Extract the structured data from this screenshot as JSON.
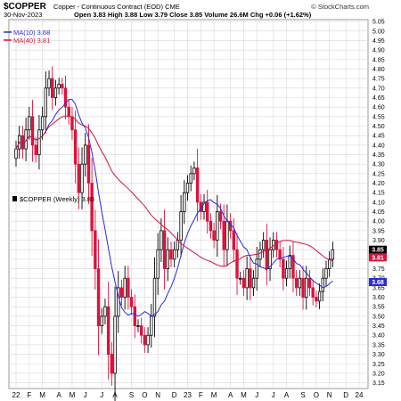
{
  "header": {
    "symbol": "$COPPER",
    "description": "Copper - Continuous Contract (EOD)",
    "exchange": "CME",
    "date": "30-Nov-2023",
    "ohlc": "Open 3.83  High 3.88  Low 3.79  Close 3.85  Volume 26.6M  Chg +0.06 (+1.62%)",
    "watermark": "© StockCharts.com"
  },
  "legend": {
    "ma10": "MA(10) 3.68",
    "ma40": "MA(40) 3.81",
    "series": "$COPPER (Weekly) 3.85"
  },
  "colors": {
    "up": "#000000",
    "down": "#e0103a",
    "ma10": "#2a2ad8",
    "ma40": "#d4133a",
    "grid": "#d9d9d9"
  },
  "chart_data": {
    "type": "candlestick",
    "interval": "weekly",
    "grid": true,
    "ylim": [
      3.12,
      5.06
    ],
    "yticks": [
      "5.05",
      "5.00",
      "4.95",
      "4.90",
      "4.85",
      "4.80",
      "4.75",
      "4.70",
      "4.65",
      "4.60",
      "4.55",
      "4.50",
      "4.45",
      "4.40",
      "4.35",
      "4.30",
      "4.25",
      "4.20",
      "4.15",
      "4.10",
      "4.05",
      "4.00",
      "3.95",
      "3.90",
      "3.85",
      "3.80",
      "3.75",
      "3.70",
      "3.65",
      "3.60",
      "3.55",
      "3.50",
      "3.45",
      "3.40",
      "3.35",
      "3.30",
      "3.25",
      "3.20",
      "3.15"
    ],
    "xticks": [
      {
        "label": "22",
        "week": 0
      },
      {
        "label": "F",
        "week": 4
      },
      {
        "label": "M",
        "week": 8
      },
      {
        "label": "A",
        "week": 13
      },
      {
        "label": "M",
        "week": 17
      },
      {
        "label": "J",
        "week": 21
      },
      {
        "label": "J",
        "week": 26
      },
      {
        "label": "A",
        "week": 30
      },
      {
        "label": "S",
        "week": 35
      },
      {
        "label": "O",
        "week": 39
      },
      {
        "label": "N",
        "week": 43
      },
      {
        "label": "D",
        "week": 48
      },
      {
        "label": "23",
        "week": 52
      },
      {
        "label": "F",
        "week": 56
      },
      {
        "label": "M",
        "week": 60
      },
      {
        "label": "A",
        "week": 65
      },
      {
        "label": "M",
        "week": 69
      },
      {
        "label": "J",
        "week": 73
      },
      {
        "label": "J",
        "week": 78
      },
      {
        "label": "A",
        "week": 82
      },
      {
        "label": "S",
        "week": 87
      },
      {
        "label": "O",
        "week": 91
      },
      {
        "label": "N",
        "week": 95
      },
      {
        "label": "D",
        "week": 100
      },
      {
        "label": "24",
        "week": 104
      }
    ],
    "last_close": 3.85,
    "last_ma10": 3.68,
    "last_ma40": 3.81,
    "close": [
      4.38,
      4.45,
      4.38,
      4.48,
      4.55,
      4.4,
      4.35,
      4.48,
      4.55,
      4.7,
      4.75,
      4.65,
      4.7,
      4.72,
      4.7,
      4.6,
      4.55,
      4.48,
      4.3,
      4.15,
      4.3,
      4.4,
      4.2,
      3.95,
      3.75,
      3.45,
      3.5,
      3.55,
      3.3,
      3.2,
      3.5,
      3.65,
      3.6,
      3.7,
      3.6,
      3.55,
      3.45,
      3.45,
      3.4,
      3.35,
      3.4,
      3.5,
      3.7,
      3.85,
      3.95,
      3.75,
      3.85,
      3.8,
      3.85,
      3.9,
      4.05,
      4.15,
      4.2,
      4.25,
      4.28,
      4.1,
      4.05,
      4.1,
      4.0,
      3.95,
      3.9,
      4.05,
      4.0,
      3.85,
      4.0,
      3.95,
      3.85,
      3.7,
      3.7,
      3.65,
      3.75,
      3.65,
      3.7,
      3.8,
      3.85,
      3.9,
      3.75,
      3.85,
      3.9,
      3.85,
      3.8,
      3.7,
      3.75,
      3.82,
      3.7,
      3.65,
      3.7,
      3.6,
      3.7,
      3.65,
      3.6,
      3.58,
      3.63,
      3.7,
      3.75,
      3.8,
      3.85
    ]
  }
}
